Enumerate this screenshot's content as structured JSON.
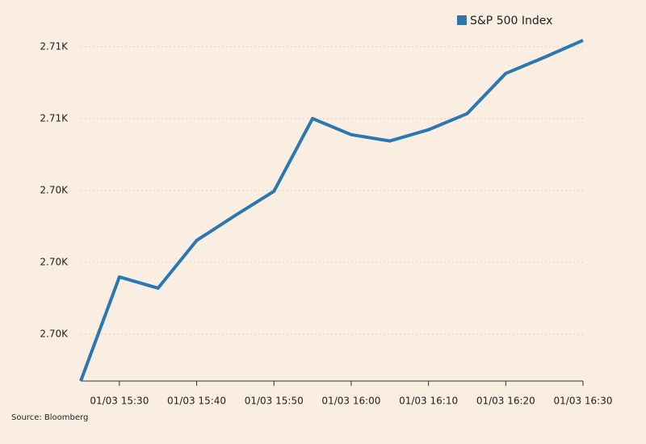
{
  "chart_data": {
    "type": "line",
    "categories": [
      null,
      "01/03 15:30",
      null,
      "01/03 15:40",
      null,
      "01/03 15:50",
      null,
      "01/03 16:00",
      null,
      "01/03 16:10",
      null,
      "01/03 16:20",
      null,
      "01/03 16:30"
    ],
    "series": [
      {
        "name": "S&P 500 Index",
        "color": "#2a77b2",
        "values": [
          2697.37,
          2700.99,
          2700.6,
          2702.26,
          2703.13,
          2703.97,
          2706.5,
          2705.94,
          2705.72,
          2706.11,
          2706.67,
          2708.07,
          2708.63,
          2709.22
        ]
      }
    ],
    "ylim": [
      2697.37,
      2709.5
    ],
    "yticks": [
      {
        "value": 2699,
        "label": "2.70K"
      },
      {
        "value": 2701.5,
        "label": "2.70K"
      },
      {
        "value": 2704,
        "label": "2.70K"
      },
      {
        "value": 2706.5,
        "label": "2.71K"
      },
      {
        "value": 2709,
        "label": "2.71K"
      }
    ],
    "grid": true,
    "legend_position": "top-right",
    "source": "Source: Bloomberg"
  }
}
